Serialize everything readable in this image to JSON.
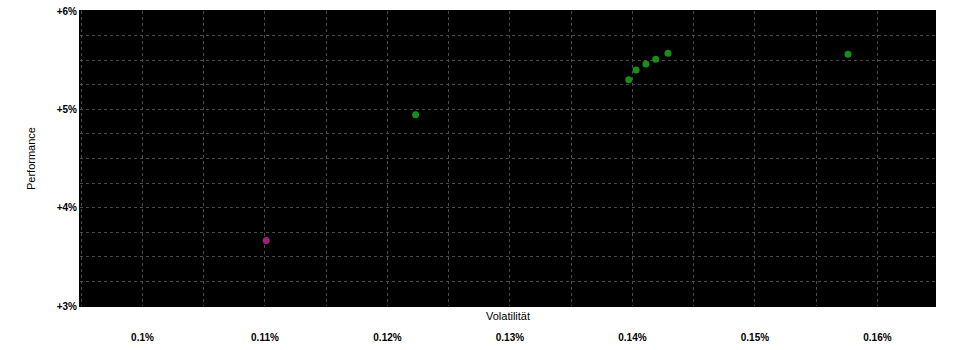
{
  "chart_data": {
    "type": "scatter",
    "x_label": "Volatilität",
    "y_label": "Performance",
    "series": [
      {
        "color": "#a0207a",
        "marker": "circle",
        "x": [
          0.1101
        ],
        "values": [
          3.665
        ]
      },
      {
        "color": "#1a8c1a",
        "marker": "circle",
        "x": [
          0.1223,
          0.1397,
          0.1403,
          0.1411,
          0.1419,
          0.1429,
          0.1576
        ],
        "values": [
          4.944,
          5.3,
          5.4,
          5.46,
          5.51,
          5.57,
          5.56
        ]
      }
    ],
    "xlim": [
      0.0949,
      0.1647
    ],
    "ylim": [
      3,
      6
    ],
    "xticks": [
      {
        "value": 0.1,
        "label": "0.1%"
      },
      {
        "value": 0.11,
        "label": "0.11%"
      },
      {
        "value": 0.12,
        "label": "0.12%"
      },
      {
        "value": 0.13,
        "label": "0.13%"
      },
      {
        "value": 0.14,
        "label": "0.14%"
      },
      {
        "value": 0.15,
        "label": "0.15%"
      },
      {
        "value": 0.16,
        "label": "0.16%"
      }
    ],
    "yticks": [
      {
        "value": 3,
        "label": "+3%"
      },
      {
        "value": 4,
        "label": "+4%"
      },
      {
        "value": 5,
        "label": "+5%"
      },
      {
        "value": 6,
        "label": "+6%"
      }
    ],
    "grid": true
  }
}
